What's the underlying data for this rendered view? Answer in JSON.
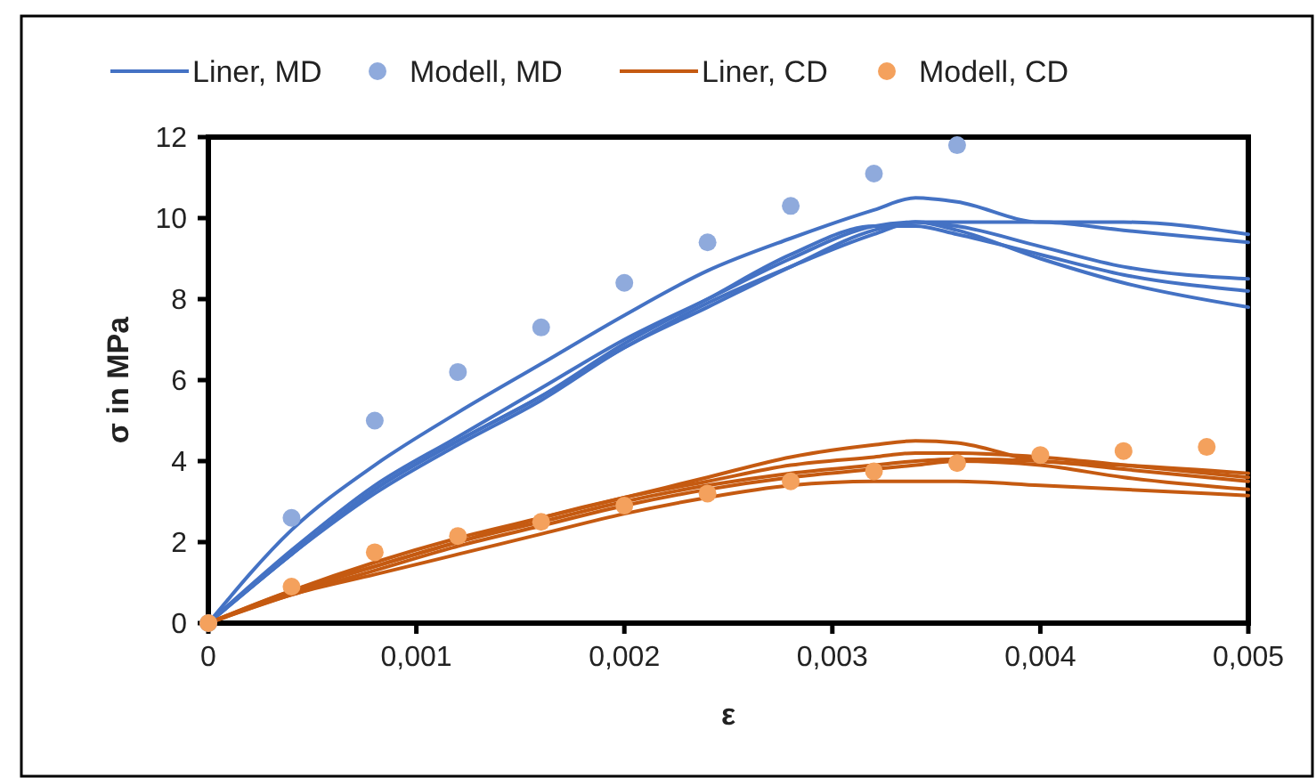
{
  "chart_data": {
    "type": "line",
    "xlabel": "ε",
    "ylabel": "σ in MPa",
    "x": [
      0,
      0.0004,
      0.0008,
      0.0012,
      0.0016,
      0.002,
      0.0024,
      0.0028,
      0.0032,
      0.0034,
      0.0036,
      0.004,
      0.0044,
      0.005
    ],
    "series": [
      {
        "name": "Liner, MD",
        "color": "#4472c4",
        "values": [
          0,
          2.3,
          3.9,
          5.2,
          6.4,
          7.6,
          8.7,
          9.5,
          10.2,
          10.5,
          10.4,
          9.9,
          9.9,
          9.6
        ]
      },
      {
        "name": "Modell, MD",
        "type": "scatter",
        "color": "#8faadc",
        "x": [
          0,
          0.0004,
          0.0008,
          0.0012,
          0.0016,
          0.002,
          0.0024,
          0.0028,
          0.0032,
          0.0036
        ],
        "values": [
          0,
          2.6,
          5.0,
          6.2,
          7.3,
          8.4,
          9.4,
          10.3,
          11.1,
          11.8
        ]
      },
      {
        "name": "Liner, CD",
        "color": "#c55a11",
        "values": [
          0,
          0.8,
          1.5,
          2.1,
          2.6,
          3.1,
          3.6,
          4.1,
          4.4,
          4.5,
          4.45,
          4.0,
          3.9,
          3.7
        ]
      },
      {
        "name": "Modell, CD",
        "type": "scatter",
        "color": "#f4a15d",
        "x": [
          0,
          0.0004,
          0.0008,
          0.0012,
          0.0016,
          0.002,
          0.0024,
          0.0028,
          0.0032,
          0.0036,
          0.004,
          0.0044,
          0.0048
        ],
        "values": [
          0,
          0.9,
          1.75,
          2.15,
          2.5,
          2.9,
          3.2,
          3.5,
          3.75,
          3.95,
          4.15,
          4.25,
          4.35
        ]
      },
      {
        "color": "#4472c4",
        "values": [
          0,
          1.8,
          3.4,
          4.6,
          5.8,
          7.0,
          8.0,
          9.0,
          9.8,
          9.9,
          9.9,
          9.9,
          9.7,
          9.4
        ]
      },
      {
        "color": "#4472c4",
        "values": [
          0,
          1.7,
          3.3,
          4.5,
          5.6,
          6.8,
          7.9,
          8.8,
          9.6,
          9.9,
          9.8,
          9.3,
          8.8,
          8.5
        ]
      },
      {
        "color": "#4472c4",
        "values": [
          0,
          1.7,
          3.3,
          4.5,
          5.6,
          6.9,
          8.0,
          9.1,
          9.8,
          9.8,
          9.6,
          9.1,
          8.6,
          8.2
        ]
      },
      {
        "color": "#4472c4",
        "values": [
          0,
          1.7,
          3.2,
          4.4,
          5.5,
          6.8,
          7.8,
          8.8,
          9.7,
          9.9,
          9.7,
          9.0,
          8.4,
          7.8
        ]
      },
      {
        "color": "#c55a11",
        "values": [
          0,
          0.8,
          1.4,
          2.0,
          2.6,
          3.1,
          3.5,
          3.9,
          4.1,
          4.2,
          4.2,
          4.1,
          3.9,
          3.6
        ]
      },
      {
        "color": "#c55a11",
        "values": [
          0,
          0.75,
          1.4,
          2.0,
          2.5,
          3.0,
          3.4,
          3.7,
          3.9,
          4.0,
          4.05,
          4.0,
          3.8,
          3.5
        ]
      },
      {
        "color": "#c55a11",
        "values": [
          0,
          0.7,
          1.3,
          1.9,
          2.4,
          2.9,
          3.3,
          3.6,
          3.8,
          3.9,
          4.0,
          3.9,
          3.6,
          3.3
        ]
      },
      {
        "color": "#c55a11",
        "values": [
          0,
          0.7,
          1.2,
          1.7,
          2.2,
          2.7,
          3.1,
          3.4,
          3.5,
          3.5,
          3.5,
          3.4,
          3.3,
          3.15
        ]
      }
    ],
    "xlim": [
      0,
      0.005
    ],
    "xticks": [
      0,
      {
        "value": 0.001,
        "label": "0,001"
      },
      {
        "value": 0.002,
        "label": "0,002"
      },
      {
        "value": 0.003,
        "label": "0,003"
      },
      {
        "value": 0.004,
        "label": "0,004"
      },
      {
        "value": 0.005,
        "label": "0,005"
      }
    ],
    "ylim": [
      0,
      12
    ],
    "yticks": [
      0,
      2,
      4,
      6,
      8,
      10,
      12
    ],
    "legend": "top",
    "grid": false
  }
}
